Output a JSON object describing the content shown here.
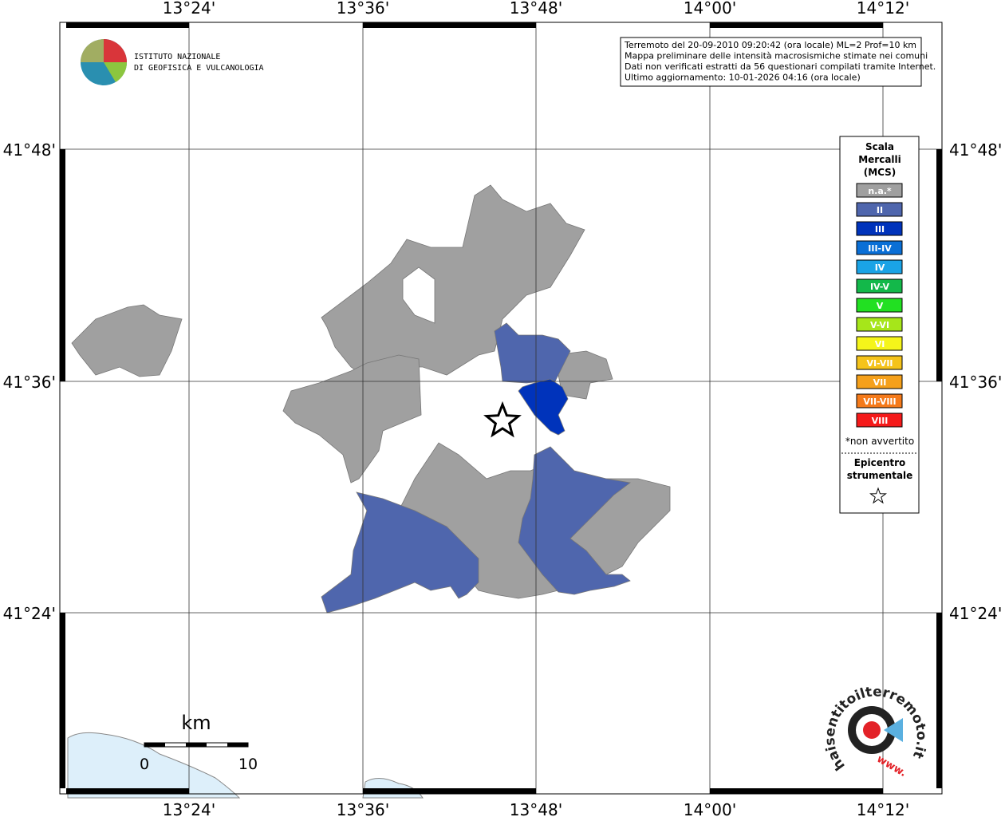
{
  "map": {
    "lon_labels": [
      "13°24'",
      "13°36'",
      "13°48'",
      "14°00'",
      "14°12'"
    ],
    "lat_labels": [
      "41°48'",
      "41°36'",
      "41°24'"
    ],
    "logo": [
      "ISTITUTO NAZIONALE",
      "DI GEOFISICA E VULCANOLOGIA"
    ],
    "info": [
      "Terremoto del 20-09-2010 09:20:42 (ora locale) ML=2 Prof=10 km",
      "Mappa preliminare delle intensità macrosismiche stimate nei comuni",
      "Dati non verificati estratti da 56 questionari compilati tramite Internet.",
      "Ultimo aggiornamento: 10-01-2026 04:16 (ora locale)"
    ],
    "legend": {
      "title": [
        "Scala",
        "Mercalli",
        "(MCS)"
      ],
      "items": [
        {
          "label": "n.a.*",
          "color": "#a0a0a0"
        },
        {
          "label": "II",
          "color": "#4f66ad"
        },
        {
          "label": "III",
          "color": "#0033bb"
        },
        {
          "label": "III-IV",
          "color": "#0a6fd6"
        },
        {
          "label": "IV",
          "color": "#1aa3e6"
        },
        {
          "label": "IV-V",
          "color": "#13b84a"
        },
        {
          "label": "V",
          "color": "#22e022"
        },
        {
          "label": "V-VI",
          "color": "#a6e61a"
        },
        {
          "label": "VI",
          "color": "#f5f51a"
        },
        {
          "label": "VI-VII",
          "color": "#f5c31a"
        },
        {
          "label": "VII",
          "color": "#f5a01a"
        },
        {
          "label": "VII-VIII",
          "color": "#f57a1a"
        },
        {
          "label": "VIII",
          "color": "#f51a1a"
        }
      ],
      "note": "*non avvertito",
      "epicenter": [
        "Epicentro",
        "strumentale"
      ]
    },
    "scale": {
      "unit": "km",
      "labels": [
        "0",
        "10"
      ]
    },
    "watermark": {
      "site": "haisentitoilterremoto.it",
      "prefix": "www."
    }
  }
}
